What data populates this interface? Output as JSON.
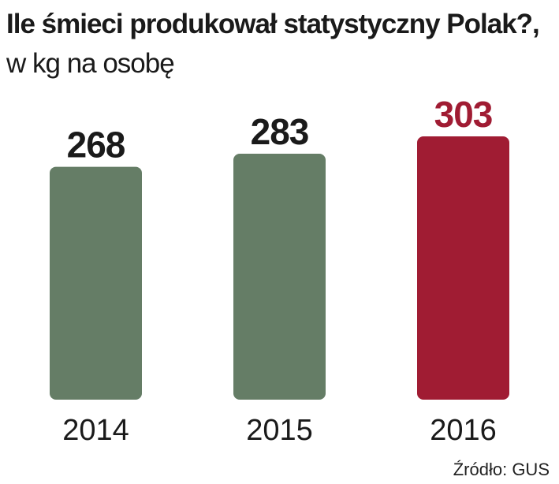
{
  "chart_data": {
    "type": "bar",
    "title": "Ile śmieci produkował statystyczny Polak?,",
    "subtitle": "w kg na osobę",
    "categories": [
      "2014",
      "2015",
      "2016"
    ],
    "values": [
      268,
      283,
      303
    ],
    "colors": [
      "#657d66",
      "#657d66",
      "#a01c33"
    ],
    "label_colors": [
      "#1a1a1a",
      "#1a1a1a",
      "#a01c33"
    ],
    "source": "Źródło: GUS"
  }
}
